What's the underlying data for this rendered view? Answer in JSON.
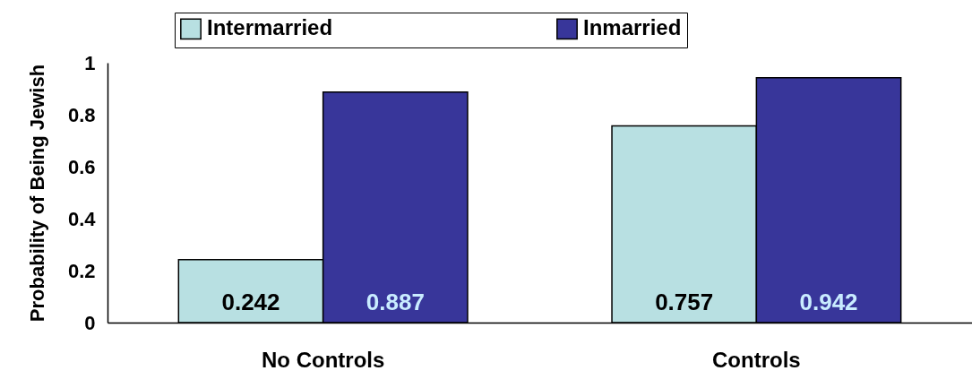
{
  "chart_data": {
    "type": "bar",
    "ylabel": "Probability of Being Jewish",
    "categories": [
      "No Controls",
      "Controls"
    ],
    "series": [
      {
        "name": "Intermarried",
        "color": "#b8e0e2",
        "values": [
          0.242,
          0.757
        ]
      },
      {
        "name": "Inmarried",
        "color": "#38369a",
        "values": [
          0.887,
          0.942
        ]
      }
    ],
    "ylim": [
      0,
      1
    ],
    "yticks": [
      0,
      0.2,
      0.4,
      0.6,
      0.8,
      1
    ],
    "data_labels": true,
    "legend": "top",
    "grid": false
  }
}
